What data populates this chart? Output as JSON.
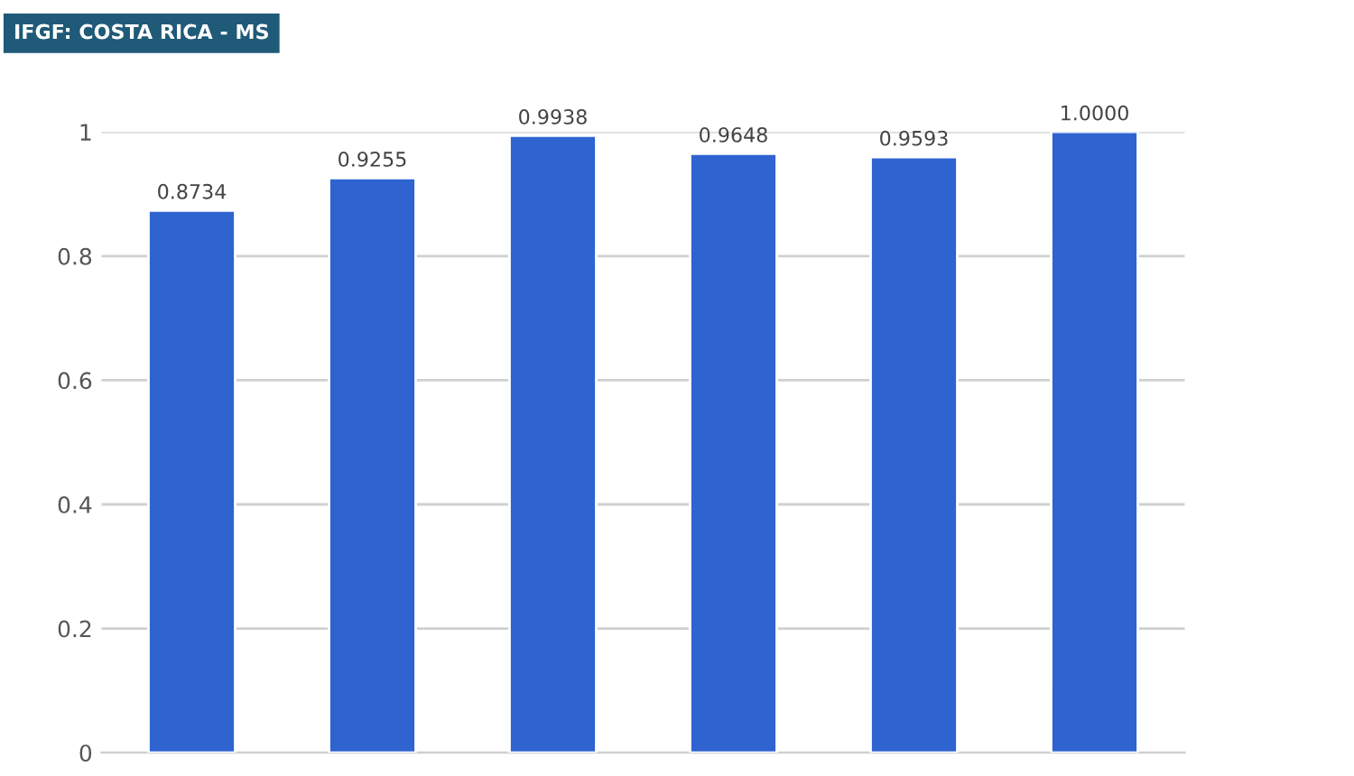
{
  "chart_data": {
    "type": "bar",
    "title": "IFGF: COSTA RICA - MS",
    "categories": [
      null,
      null,
      null,
      null,
      null,
      null
    ],
    "values": [
      0.8734,
      0.9255,
      0.9938,
      0.9648,
      0.9593,
      1.0
    ],
    "value_labels": [
      "0.8734",
      "0.9255",
      "0.9938",
      "0.9648",
      "0.9593",
      "1.0000"
    ],
    "color": "#2f63d0",
    "ylim": [
      0,
      1
    ],
    "yticks": [
      {
        "value": 0,
        "label": "0"
      },
      {
        "value": 0.2,
        "label": "0.2"
      },
      {
        "value": 0.4,
        "label": "0.4"
      },
      {
        "value": 0.6,
        "label": "0.6"
      },
      {
        "value": 0.8,
        "label": "0.8"
      },
      {
        "value": 1,
        "label": "1"
      }
    ],
    "grid": "y"
  }
}
